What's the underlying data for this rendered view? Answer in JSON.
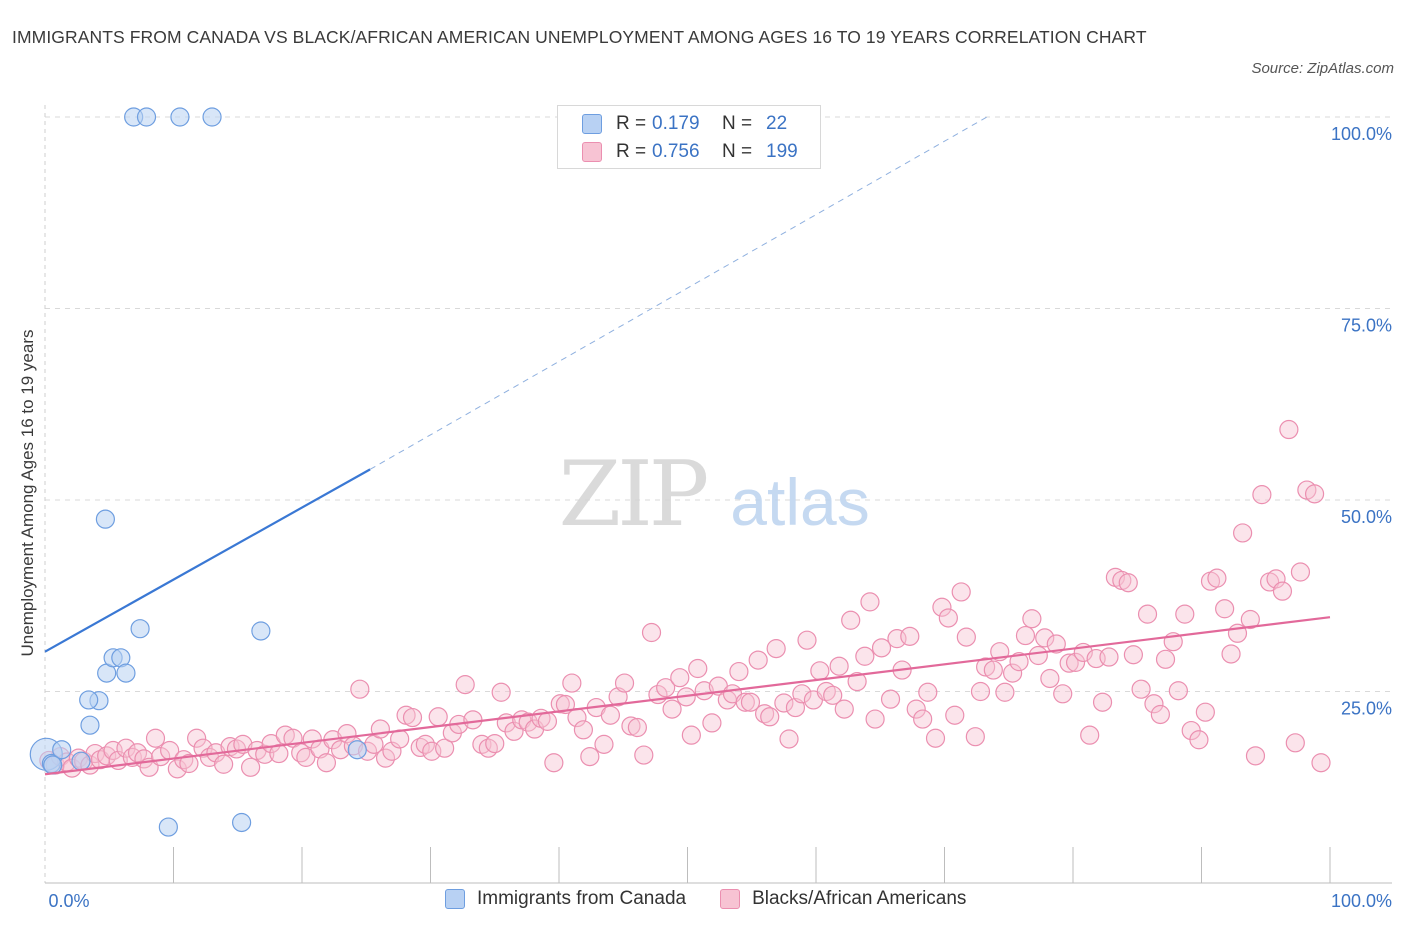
{
  "title": "IMMIGRANTS FROM CANADA VS BLACK/AFRICAN AMERICAN UNEMPLOYMENT AMONG AGES 16 TO 19 YEARS CORRELATION CHART",
  "source": "Source: ZipAtlas.com",
  "watermark": {
    "zip": "ZIP",
    "atlas": "atlas"
  },
  "colors": {
    "blue": "#3a78d4",
    "blue_fill": "#b8d1f3",
    "blue_stroke": "#6e9ee0",
    "pink": "#e2699a",
    "pink_fill": "#f7c3d3",
    "pink_stroke": "#eb8fb0",
    "tick_text": "#3b73c4",
    "grid": "#d9d9d9"
  },
  "legend": {
    "rows": [
      {
        "r_label": "R =",
        "r_value": "0.179",
        "n_label": "N =",
        "n_value": "22"
      },
      {
        "r_label": "R =",
        "r_value": "0.756",
        "n_label": "N =",
        "n_value": "199"
      }
    ]
  },
  "chart_data": {
    "type": "scatter",
    "title": "IMMIGRANTS FROM CANADA VS BLACK/AFRICAN AMERICAN UNEMPLOYMENT AMONG AGES 16 TO 19 YEARS CORRELATION CHART",
    "xlabel": "",
    "ylabel": "Unemployment Among Ages 16 to 19 years",
    "xlim": [
      0,
      100
    ],
    "ylim": [
      0,
      100
    ],
    "x_tick_labels": [
      "0.0%",
      "100.0%"
    ],
    "y_tick_labels": [
      "100.0%",
      "75.0%",
      "50.0%",
      "25.0%"
    ],
    "y_ticks": [
      100,
      75,
      50,
      25
    ],
    "grid": true,
    "legend_position": "top-center",
    "series": [
      {
        "name": "Immigrants from Canada",
        "color": "#3a78d4",
        "trend": {
          "x0": 0,
          "y0": 30.2,
          "x1": 25.3,
          "y1": 54.0,
          "dashed_to_x": 73.3,
          "dashed_to_y": 100
        },
        "points": [
          [
            0.1,
            16.8
          ],
          [
            0.5,
            15.6
          ],
          [
            1.3,
            17.4
          ],
          [
            2.8,
            15.9
          ],
          [
            3.5,
            20.6
          ],
          [
            4.8,
            27.4
          ],
          [
            4.2,
            23.8
          ],
          [
            3.4,
            23.9
          ],
          [
            4.7,
            47.5
          ],
          [
            5.3,
            29.4
          ],
          [
            5.9,
            29.4
          ],
          [
            6.3,
            27.4
          ],
          [
            7.4,
            33.2
          ],
          [
            6.9,
            100
          ],
          [
            7.9,
            100
          ],
          [
            10.5,
            100
          ],
          [
            13.0,
            100
          ],
          [
            9.6,
            7.3
          ],
          [
            15.3,
            7.9
          ],
          [
            16.8,
            32.9
          ],
          [
            24.3,
            17.4
          ],
          [
            0.6,
            15.4
          ]
        ]
      },
      {
        "name": "Blacks/African Americans",
        "color": "#e2699a",
        "trend": {
          "x0": 0,
          "y0": 14.2,
          "x1": 100,
          "y1": 34.7
        },
        "points": [
          [
            0.3,
            16.0
          ],
          [
            0.8,
            15.4
          ],
          [
            1.2,
            16.5
          ],
          [
            1.7,
            15.8
          ],
          [
            2.1,
            15.0
          ],
          [
            2.6,
            16.3
          ],
          [
            3.0,
            15.9
          ],
          [
            3.5,
            15.4
          ],
          [
            3.9,
            16.9
          ],
          [
            4.3,
            16.1
          ],
          [
            4.8,
            16.6
          ],
          [
            5.3,
            17.3
          ],
          [
            5.7,
            16.0
          ],
          [
            6.3,
            17.6
          ],
          [
            6.8,
            16.4
          ],
          [
            7.2,
            17.0
          ],
          [
            7.7,
            16.2
          ],
          [
            8.1,
            15.1
          ],
          [
            8.6,
            18.9
          ],
          [
            9.0,
            16.5
          ],
          [
            9.7,
            17.3
          ],
          [
            10.3,
            14.9
          ],
          [
            10.8,
            16.1
          ],
          [
            11.2,
            15.6
          ],
          [
            11.8,
            18.9
          ],
          [
            12.3,
            17.6
          ],
          [
            12.8,
            16.4
          ],
          [
            13.3,
            17.0
          ],
          [
            13.9,
            15.5
          ],
          [
            14.4,
            17.8
          ],
          [
            14.9,
            17.5
          ],
          [
            15.4,
            18.1
          ],
          [
            16.0,
            15.1
          ],
          [
            16.5,
            17.3
          ],
          [
            17.1,
            16.8
          ],
          [
            17.6,
            18.2
          ],
          [
            18.2,
            16.9
          ],
          [
            18.7,
            19.3
          ],
          [
            19.3,
            18.9
          ],
          [
            19.9,
            17.0
          ],
          [
            20.3,
            16.4
          ],
          [
            20.8,
            18.8
          ],
          [
            21.4,
            17.5
          ],
          [
            21.9,
            15.7
          ],
          [
            22.4,
            18.7
          ],
          [
            23.0,
            17.4
          ],
          [
            23.5,
            19.5
          ],
          [
            24.0,
            17.9
          ],
          [
            24.5,
            25.3
          ],
          [
            25.1,
            17.2
          ],
          [
            25.6,
            18.1
          ],
          [
            26.1,
            20.1
          ],
          [
            26.5,
            16.3
          ],
          [
            27.0,
            17.2
          ],
          [
            27.6,
            18.8
          ],
          [
            28.1,
            21.9
          ],
          [
            28.6,
            21.6
          ],
          [
            29.2,
            17.7
          ],
          [
            29.6,
            18.1
          ],
          [
            30.1,
            17.2
          ],
          [
            30.6,
            21.7
          ],
          [
            31.1,
            17.6
          ],
          [
            31.7,
            19.6
          ],
          [
            32.2,
            20.7
          ],
          [
            32.7,
            25.9
          ],
          [
            33.3,
            21.3
          ],
          [
            34.0,
            18.1
          ],
          [
            34.5,
            17.6
          ],
          [
            35.0,
            18.2
          ],
          [
            35.5,
            24.9
          ],
          [
            35.9,
            20.9
          ],
          [
            36.5,
            19.8
          ],
          [
            37.1,
            21.3
          ],
          [
            37.6,
            21.0
          ],
          [
            38.1,
            20.1
          ],
          [
            38.6,
            21.5
          ],
          [
            39.1,
            21.1
          ],
          [
            39.6,
            15.7
          ],
          [
            40.1,
            23.4
          ],
          [
            40.5,
            23.3
          ],
          [
            41.0,
            26.1
          ],
          [
            41.4,
            21.6
          ],
          [
            41.9,
            20.0
          ],
          [
            42.4,
            16.5
          ],
          [
            42.9,
            22.9
          ],
          [
            43.5,
            18.1
          ],
          [
            44.0,
            21.9
          ],
          [
            44.6,
            24.3
          ],
          [
            45.1,
            26.1
          ],
          [
            45.6,
            20.5
          ],
          [
            46.1,
            20.3
          ],
          [
            46.6,
            16.7
          ],
          [
            47.2,
            32.7
          ],
          [
            47.7,
            24.6
          ],
          [
            48.3,
            25.5
          ],
          [
            48.8,
            22.7
          ],
          [
            49.4,
            26.8
          ],
          [
            49.9,
            24.3
          ],
          [
            50.3,
            19.3
          ],
          [
            50.8,
            28.0
          ],
          [
            51.3,
            25.1
          ],
          [
            51.9,
            20.9
          ],
          [
            52.4,
            25.7
          ],
          [
            53.1,
            23.9
          ],
          [
            53.5,
            24.7
          ],
          [
            54.0,
            27.6
          ],
          [
            54.5,
            23.6
          ],
          [
            54.9,
            23.6
          ],
          [
            55.5,
            29.1
          ],
          [
            56.0,
            22.1
          ],
          [
            56.4,
            21.7
          ],
          [
            56.9,
            30.6
          ],
          [
            57.5,
            23.5
          ],
          [
            57.9,
            18.8
          ],
          [
            58.4,
            22.9
          ],
          [
            58.9,
            24.7
          ],
          [
            59.3,
            31.7
          ],
          [
            59.8,
            23.9
          ],
          [
            60.3,
            27.7
          ],
          [
            60.8,
            25.0
          ],
          [
            61.3,
            24.5
          ],
          [
            61.8,
            28.3
          ],
          [
            62.2,
            22.7
          ],
          [
            62.7,
            34.3
          ],
          [
            63.2,
            26.3
          ],
          [
            63.8,
            29.6
          ],
          [
            64.2,
            36.7
          ],
          [
            64.6,
            21.4
          ],
          [
            65.1,
            30.7
          ],
          [
            65.8,
            24.0
          ],
          [
            66.3,
            31.9
          ],
          [
            66.7,
            27.8
          ],
          [
            67.3,
            32.2
          ],
          [
            67.8,
            22.7
          ],
          [
            68.3,
            21.4
          ],
          [
            68.7,
            24.9
          ],
          [
            69.3,
            18.9
          ],
          [
            69.8,
            36.0
          ],
          [
            70.3,
            34.6
          ],
          [
            70.8,
            21.9
          ],
          [
            71.3,
            38.0
          ],
          [
            71.7,
            32.1
          ],
          [
            72.4,
            19.1
          ],
          [
            72.8,
            25.0
          ],
          [
            73.2,
            28.2
          ],
          [
            73.8,
            27.8
          ],
          [
            74.3,
            30.2
          ],
          [
            74.7,
            24.9
          ],
          [
            75.3,
            27.4
          ],
          [
            75.8,
            28.9
          ],
          [
            76.3,
            32.3
          ],
          [
            76.8,
            34.5
          ],
          [
            77.3,
            29.7
          ],
          [
            77.8,
            32.0
          ],
          [
            78.2,
            26.7
          ],
          [
            78.7,
            31.2
          ],
          [
            79.2,
            24.7
          ],
          [
            79.7,
            28.7
          ],
          [
            80.2,
            28.8
          ],
          [
            80.8,
            30.1
          ],
          [
            81.3,
            19.3
          ],
          [
            81.8,
            29.3
          ],
          [
            82.3,
            23.6
          ],
          [
            82.8,
            29.5
          ],
          [
            83.3,
            39.9
          ],
          [
            83.8,
            39.5
          ],
          [
            84.3,
            39.2
          ],
          [
            84.7,
            29.8
          ],
          [
            85.3,
            25.3
          ],
          [
            85.8,
            35.1
          ],
          [
            86.3,
            23.4
          ],
          [
            86.8,
            22.0
          ],
          [
            87.2,
            29.2
          ],
          [
            87.8,
            31.5
          ],
          [
            88.2,
            25.1
          ],
          [
            88.7,
            35.1
          ],
          [
            89.2,
            19.9
          ],
          [
            89.8,
            18.7
          ],
          [
            90.3,
            22.3
          ],
          [
            90.7,
            39.4
          ],
          [
            91.2,
            39.8
          ],
          [
            91.8,
            35.8
          ],
          [
            92.3,
            29.9
          ],
          [
            92.8,
            32.6
          ],
          [
            93.2,
            45.7
          ],
          [
            93.8,
            34.4
          ],
          [
            94.2,
            16.6
          ],
          [
            94.7,
            50.7
          ],
          [
            95.3,
            39.3
          ],
          [
            95.8,
            39.7
          ],
          [
            96.3,
            38.1
          ],
          [
            96.8,
            59.2
          ],
          [
            97.3,
            18.3
          ],
          [
            97.7,
            40.6
          ],
          [
            98.2,
            51.3
          ],
          [
            98.8,
            50.8
          ],
          [
            99.3,
            15.7
          ]
        ]
      }
    ]
  },
  "bottom_legend": [
    "Immigrants from Canada",
    "Blacks/African Americans"
  ]
}
